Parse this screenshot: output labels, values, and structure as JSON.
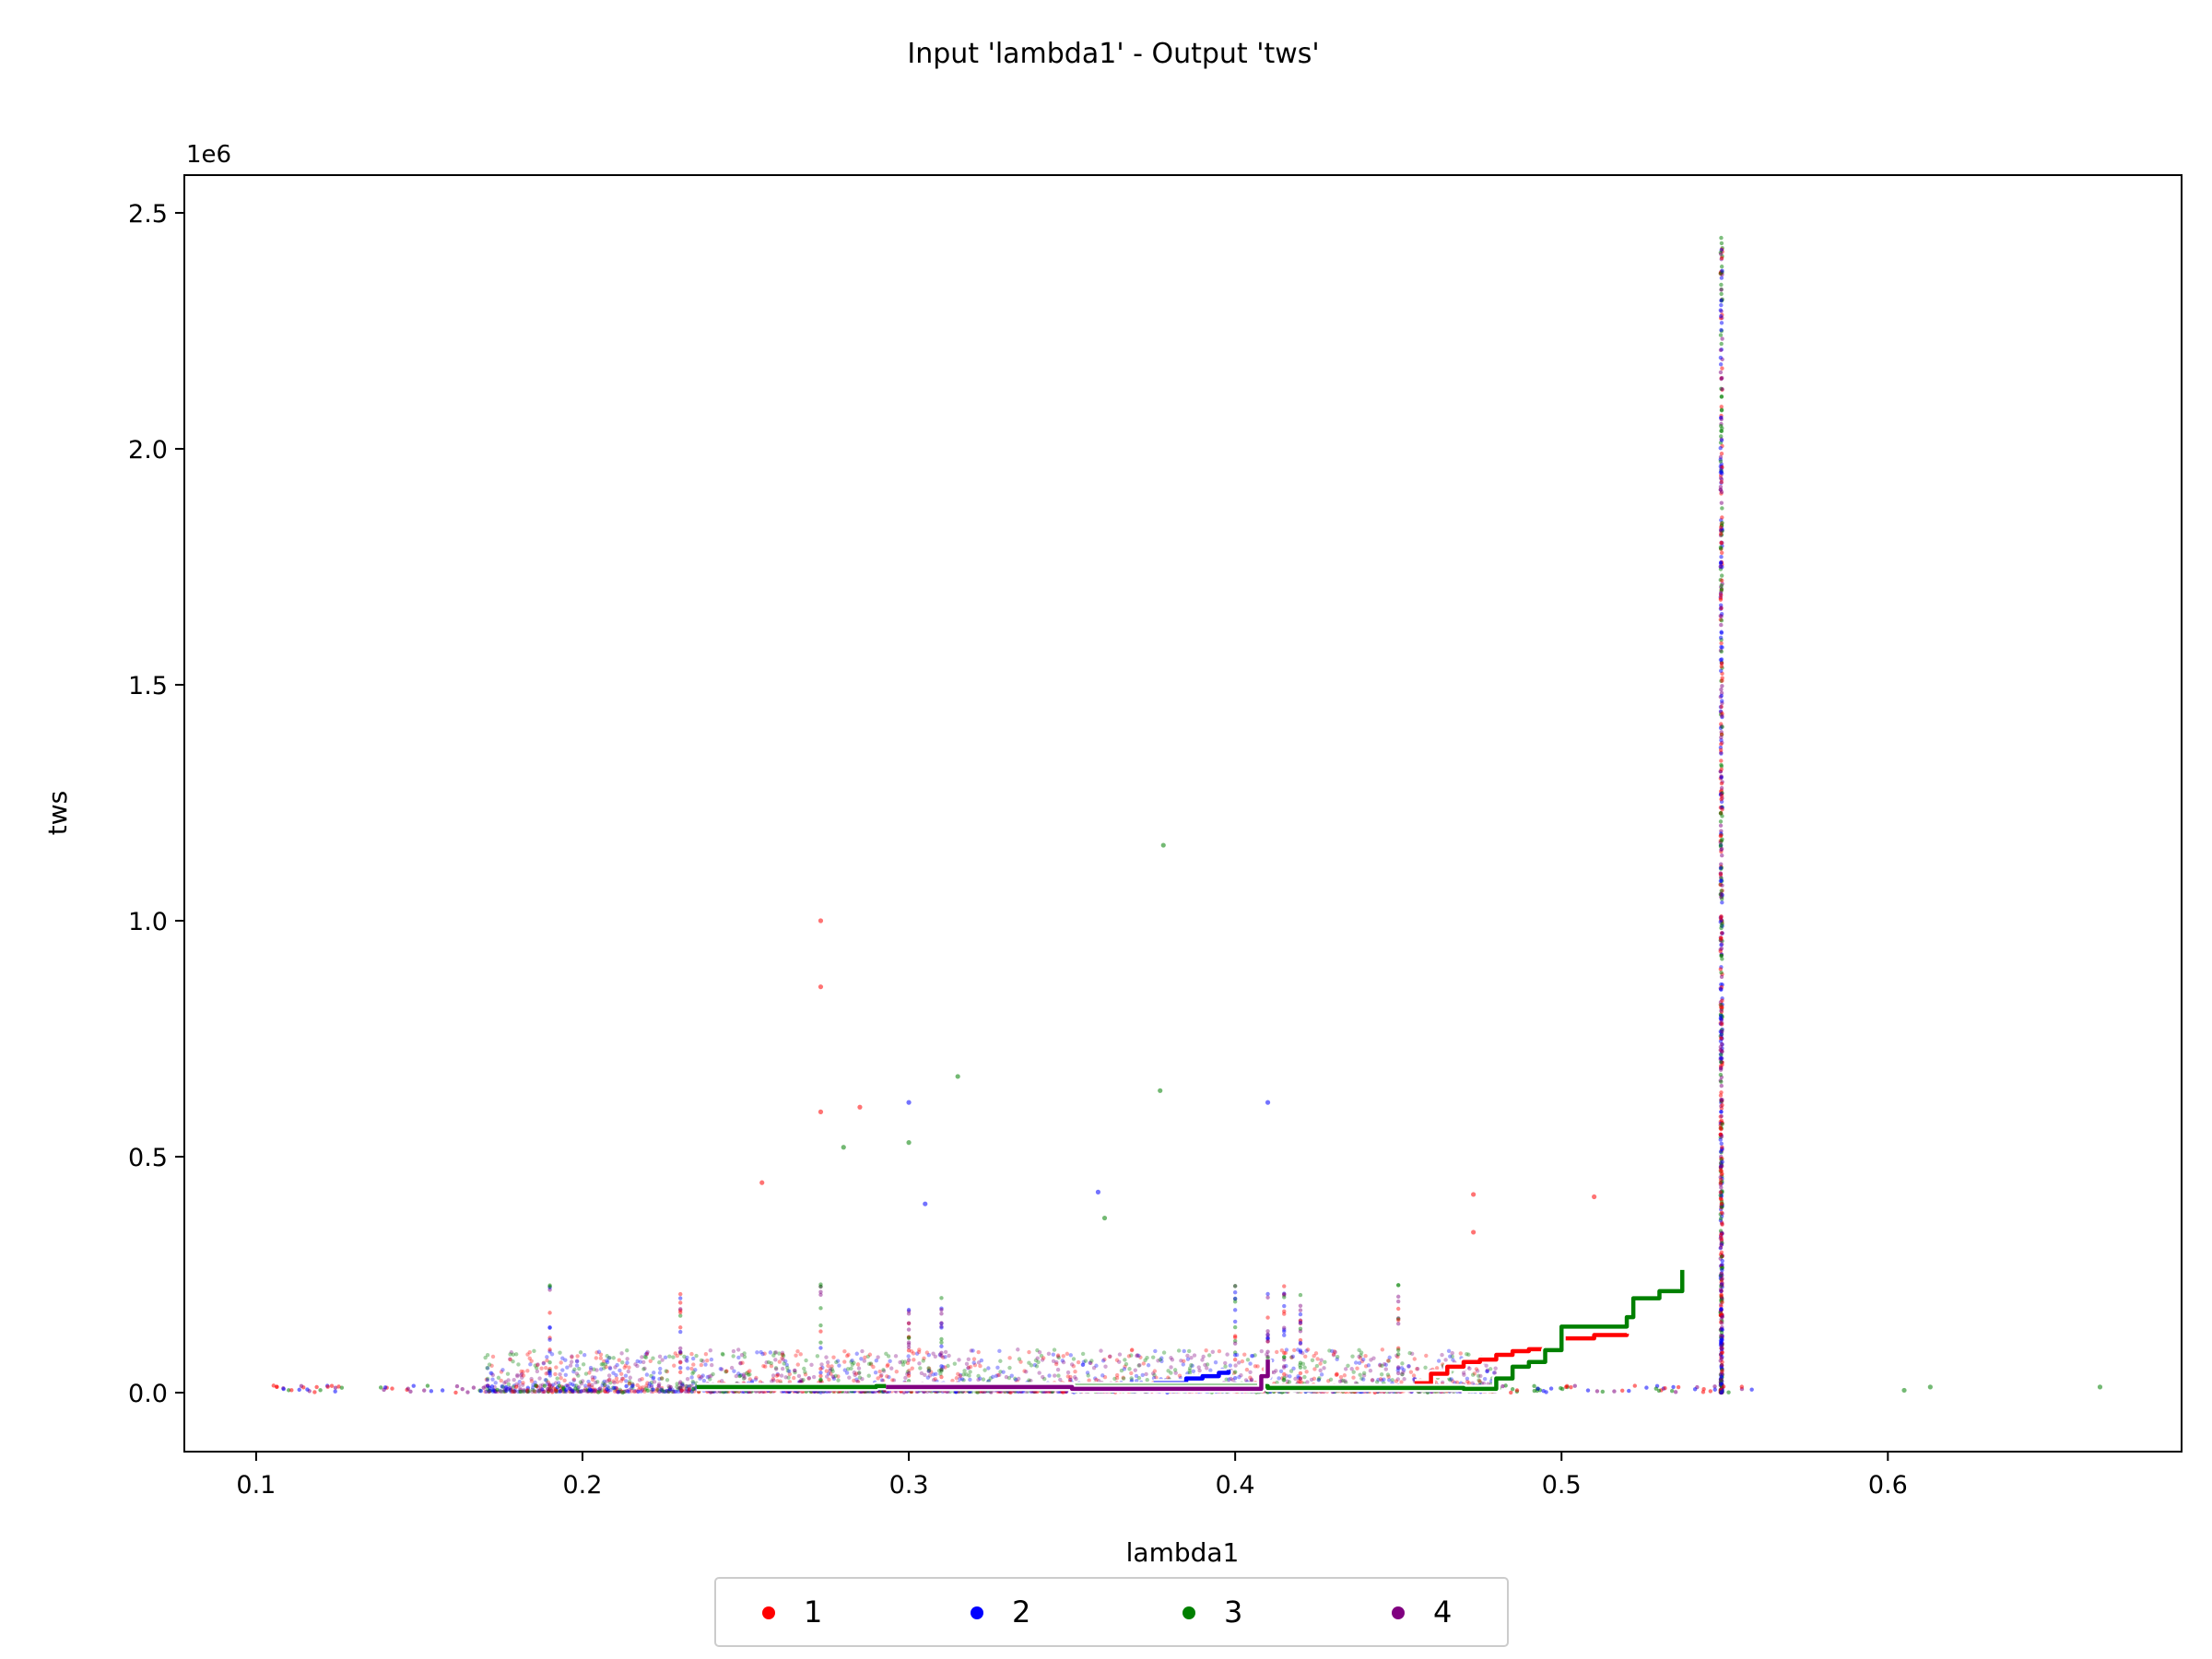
{
  "chart_data": {
    "type": "scatter",
    "title": "Input 'lambda1' - Output 'tws'",
    "xlabel": "lambda1",
    "ylabel": "tws",
    "y_offset_label": "1e6",
    "xlim": [
      0.078,
      0.69
    ],
    "ylim": [
      -125000,
      2580000
    ],
    "x_ticks": [
      0.1,
      0.2,
      0.3,
      0.4,
      0.5,
      0.6
    ],
    "x_tick_labels": [
      "0.1",
      "0.2",
      "0.3",
      "0.4",
      "0.5",
      "0.6"
    ],
    "y_ticks": [
      0,
      500000,
      1000000,
      1500000,
      2000000,
      2500000
    ],
    "y_tick_labels": [
      "0.0",
      "0.5",
      "1.0",
      "1.5",
      "2.0",
      "2.5"
    ],
    "grid": false,
    "legend_position": "bottom-center",
    "series": [
      {
        "name": "1",
        "color": "#ff0000",
        "front": [
          [
            0.455,
            20000
          ],
          [
            0.46,
            40000
          ],
          [
            0.465,
            55000
          ],
          [
            0.47,
            65000
          ],
          [
            0.475,
            70000
          ],
          [
            0.48,
            80000
          ],
          [
            0.485,
            88000
          ],
          [
            0.49,
            92000
          ],
          [
            0.5,
            115000
          ],
          [
            0.51,
            122000
          ],
          [
            0.52,
            125000
          ]
        ]
      },
      {
        "name": "2",
        "color": "#0000ff",
        "front": [
          [
            0.375,
            20000
          ],
          [
            0.385,
            30000
          ],
          [
            0.39,
            35000
          ],
          [
            0.395,
            42000
          ],
          [
            0.398,
            48000
          ]
        ]
      },
      {
        "name": "3",
        "color": "#008000",
        "front": [
          [
            0.235,
            12000
          ],
          [
            0.29,
            14000
          ],
          [
            0.41,
            10000
          ],
          [
            0.47,
            8000
          ],
          [
            0.48,
            30000
          ],
          [
            0.485,
            55000
          ],
          [
            0.49,
            65000
          ],
          [
            0.495,
            90000
          ],
          [
            0.5,
            140000
          ],
          [
            0.52,
            160000
          ],
          [
            0.522,
            200000
          ],
          [
            0.53,
            215000
          ],
          [
            0.537,
            260000
          ]
        ]
      },
      {
        "name": "4",
        "color": "#800080",
        "front": [
          [
            0.293,
            12000
          ],
          [
            0.35,
            8000
          ],
          [
            0.405,
            8000
          ],
          [
            0.408,
            35000
          ],
          [
            0.41,
            70000
          ]
        ]
      }
    ],
    "annotated_points": [
      {
        "series": "3",
        "x": 0.378,
        "y": 1160000
      },
      {
        "series": "1",
        "x": 0.273,
        "y": 1000000
      },
      {
        "series": "1",
        "x": 0.273,
        "y": 860000
      },
      {
        "series": "3",
        "x": 0.315,
        "y": 670000
      },
      {
        "series": "3",
        "x": 0.377,
        "y": 640000
      },
      {
        "series": "2",
        "x": 0.3,
        "y": 615000
      },
      {
        "series": "1",
        "x": 0.285,
        "y": 605000
      },
      {
        "series": "2",
        "x": 0.41,
        "y": 615000
      },
      {
        "series": "1",
        "x": 0.273,
        "y": 595000
      },
      {
        "series": "3",
        "x": 0.3,
        "y": 530000
      },
      {
        "series": "3",
        "x": 0.28,
        "y": 520000
      },
      {
        "series": "1",
        "x": 0.255,
        "y": 445000
      },
      {
        "series": "2",
        "x": 0.358,
        "y": 425000
      },
      {
        "series": "1",
        "x": 0.473,
        "y": 420000
      },
      {
        "series": "1",
        "x": 0.51,
        "y": 415000
      },
      {
        "series": "2",
        "x": 0.305,
        "y": 400000
      },
      {
        "series": "3",
        "x": 0.36,
        "y": 370000
      },
      {
        "series": "1",
        "x": 0.473,
        "y": 340000
      },
      {
        "series": "3",
        "x": 0.605,
        "y": 5000
      },
      {
        "series": "3",
        "x": 0.613,
        "y": 12000
      },
      {
        "series": "3",
        "x": 0.665,
        "y": 12000
      }
    ]
  }
}
